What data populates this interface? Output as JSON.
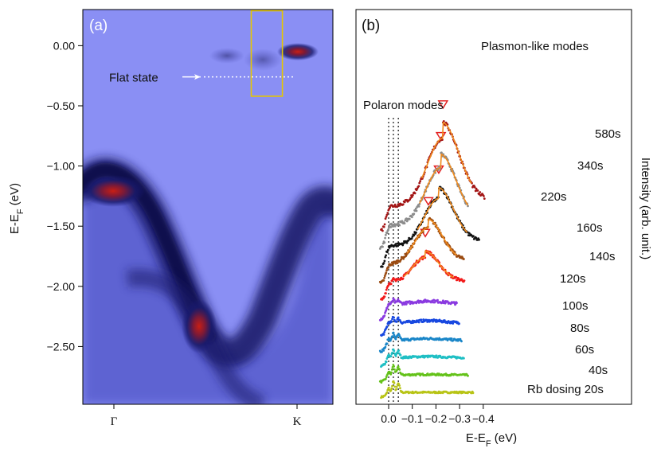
{
  "chart_data": [
    {
      "type": "heatmap",
      "panel_label": "(a)",
      "ylabel": "E-E",
      "ylabel_sub": "F",
      "ylabel_unit": " (eV)",
      "ylim": [
        -2.98,
        0.3
      ],
      "yticks": [
        0.0,
        -0.5,
        -1.0,
        -1.5,
        -2.0,
        -2.5
      ],
      "ytick_labels": [
        "0.00",
        "−0.50",
        "−1.00",
        "−1.50",
        "−2.00",
        "−2.50"
      ],
      "xticks": [
        {
          "label": "Γ",
          "pos": 0.0
        },
        {
          "label": "K",
          "pos": 1.0
        }
      ],
      "annotations": [
        {
          "text": "Flat state",
          "energy": -0.26
        }
      ],
      "highlight_box": {
        "k_from": 0.75,
        "k_to": 0.92,
        "e_top": 0.29,
        "e_bottom": -0.42,
        "color": "#e6c700"
      }
    },
    {
      "type": "line",
      "panel_label": "(b)",
      "xlabel": "E-E",
      "xlabel_sub": "F",
      "xlabel_unit": " (eV)",
      "ylabel": "Intensity (arb. unit.)",
      "xlim": [
        0.05,
        -0.405
      ],
      "xticks": [
        0.0,
        -0.1,
        -0.2,
        -0.3,
        -0.4
      ],
      "xtick_labels": [
        "0.0",
        "−0.1",
        "−0.2",
        "−0.3",
        "−0.4"
      ],
      "polaron_lines": [
        0.0,
        -0.02,
        -0.041
      ],
      "annotations": [
        {
          "text": "Plasmon-like modes"
        },
        {
          "text": "Polaron modes"
        }
      ],
      "series": [
        {
          "name": "Rb dosing 20s",
          "color": "#b8c417",
          "end": -0.357,
          "base": 0.0,
          "plasmon": null
        },
        {
          "name": "40s",
          "color": "#64c21a",
          "end": -0.335,
          "base": 0.045,
          "plasmon": null
        },
        {
          "name": "60s",
          "color": "#1fbfc4",
          "end": -0.318,
          "base": 0.09,
          "plasmon": null
        },
        {
          "name": "80s",
          "color": "#1a86c8",
          "end": -0.308,
          "base": 0.135,
          "plasmon": null
        },
        {
          "name": "100s",
          "color": "#1848e0",
          "end": -0.298,
          "base": 0.18,
          "plasmon": null
        },
        {
          "name": "120s",
          "color": "#8a3ae0",
          "end": -0.288,
          "base": 0.23,
          "plasmon": null
        },
        {
          "name": "140s",
          "color": "#f21b1b",
          "end": -0.32,
          "base": 0.285,
          "plasmon": -0.155
        },
        {
          "name": "160s",
          "color": "#9a4a10",
          "end": -0.318,
          "base": 0.335,
          "plasmon": -0.168
        },
        {
          "name": "220s",
          "color": "#111111",
          "end": -0.382,
          "base": 0.385,
          "plasmon": -0.212
        },
        {
          "name": "340s",
          "color": "#8c8c8c",
          "end": -0.335,
          "base": 0.44,
          "plasmon": -0.221
        },
        {
          "name": "580s",
          "color": "#a31515",
          "end": -0.405,
          "base": 0.49,
          "plasmon": -0.23
        }
      ]
    }
  ]
}
